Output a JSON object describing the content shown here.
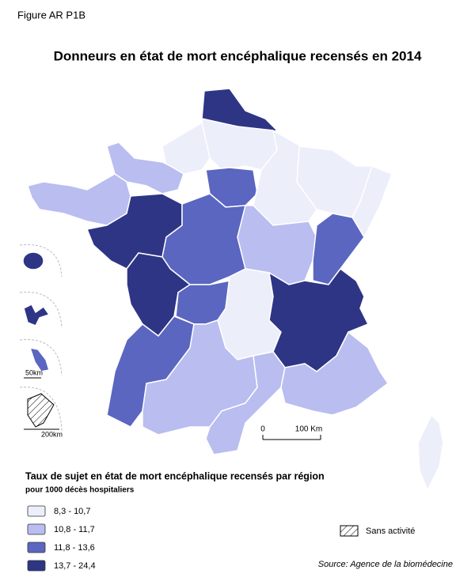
{
  "figure_label": "Figure AR P1B",
  "title": "Donneurs en état de mort encéphalique recensés en 2014",
  "legend": {
    "title": "Taux de sujet en état de mort encéphalique recensés par région",
    "subtitle": "pour 1000 décès hospitaliers",
    "items": [
      {
        "label": "8,3 - 10,7",
        "color": "#eceefa"
      },
      {
        "label": "10,8 - 11,7",
        "color": "#b9bdf0"
      },
      {
        "label": "11,8 - 13,6",
        "color": "#5a66c0"
      },
      {
        "label": "13,7 - 24,4",
        "color": "#2e3585"
      }
    ]
  },
  "no_activity": "Sans activité",
  "scale": {
    "start": "0",
    "end": "100 Km"
  },
  "insets": {
    "reunion_scale": "50km",
    "guyane_scale": "200km"
  },
  "source": "Source: Agence de la biomédecine"
}
